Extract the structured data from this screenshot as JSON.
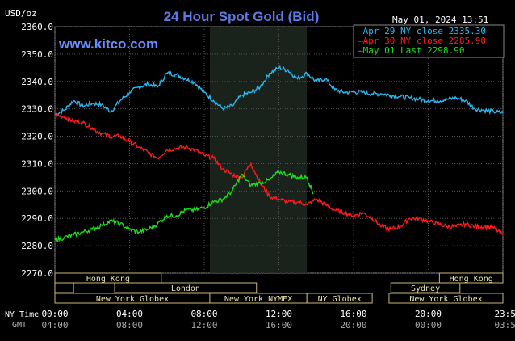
{
  "chart_data": {
    "type": "line",
    "title": "24 Hour Spot Gold (Bid)",
    "watermark": "www.kitco.com",
    "timestamp": "May 01, 2024 13:51",
    "ylabel": "USD/oz",
    "ylim": [
      2270,
      2360
    ],
    "yticks": [
      "2360.0",
      "2350.0",
      "2340.0",
      "2330.0",
      "2320.0",
      "2310.0",
      "2300.0",
      "2290.0",
      "2280.0",
      "2270.0"
    ],
    "grid": true,
    "legend_placement": "top-right",
    "x_ny": [
      "00:00",
      "04:00",
      "08:00",
      "12:00",
      "16:00",
      "20:00",
      "23:59"
    ],
    "x_gmt": [
      "04:00",
      "08:00",
      "12:00",
      "16:00",
      "20:00",
      "00:00",
      "03:59"
    ],
    "ny_time_label": "NY Time",
    "gmt_label": "GMT",
    "highlight_hours": [
      8.3,
      13.5
    ],
    "series": [
      {
        "name": "Apr 29 NY close 2335.30",
        "color": "#29b8f0",
        "points": [
          [
            0,
            2328
          ],
          [
            0.5,
            2329.5
          ],
          [
            1,
            2333
          ],
          [
            1.5,
            2331
          ],
          [
            2,
            2332
          ],
          [
            2.5,
            2331.5
          ],
          [
            3,
            2329
          ],
          [
            3.5,
            2333
          ],
          [
            4,
            2336
          ],
          [
            4.5,
            2338
          ],
          [
            5,
            2339
          ],
          [
            5.5,
            2338
          ],
          [
            6,
            2343
          ],
          [
            6.5,
            2342.5
          ],
          [
            7,
            2341
          ],
          [
            7.5,
            2339.5
          ],
          [
            8,
            2336
          ],
          [
            8.5,
            2333
          ],
          [
            9,
            2330
          ],
          [
            9.5,
            2331
          ],
          [
            10,
            2335
          ],
          [
            10.5,
            2336
          ],
          [
            11,
            2338
          ],
          [
            11.5,
            2343
          ],
          [
            12,
            2345
          ],
          [
            12.5,
            2344
          ],
          [
            13,
            2341
          ],
          [
            13.5,
            2343
          ],
          [
            14,
            2340
          ],
          [
            14.5,
            2341
          ],
          [
            15,
            2337
          ],
          [
            15.5,
            2336
          ],
          [
            16,
            2336.2
          ],
          [
            16.5,
            2336
          ],
          [
            17,
            2335.5
          ],
          [
            17.5,
            2335.5
          ],
          [
            18,
            2335
          ],
          [
            18.5,
            2334.5
          ],
          [
            19,
            2334
          ],
          [
            19.5,
            2333.5
          ],
          [
            20,
            2333
          ],
          [
            20.5,
            2333
          ],
          [
            21,
            2333.5
          ],
          [
            21.5,
            2334
          ],
          [
            22,
            2333
          ],
          [
            22.5,
            2330
          ],
          [
            23,
            2329.5
          ],
          [
            23.5,
            2329
          ],
          [
            24,
            2328.5
          ]
        ]
      },
      {
        "name": "Apr 30 NY close 2285.90",
        "color": "#ff1a1a",
        "points": [
          [
            0,
            2328
          ],
          [
            0.5,
            2327
          ],
          [
            1,
            2325.5
          ],
          [
            1.5,
            2325
          ],
          [
            2,
            2323
          ],
          [
            2.5,
            2321
          ],
          [
            3,
            2320
          ],
          [
            3.5,
            2320
          ],
          [
            4,
            2318
          ],
          [
            4.5,
            2316
          ],
          [
            5,
            2314
          ],
          [
            5.5,
            2312
          ],
          [
            6,
            2315
          ],
          [
            6.5,
            2315.5
          ],
          [
            7,
            2316
          ],
          [
            7.5,
            2315
          ],
          [
            8,
            2313
          ],
          [
            8.5,
            2312
          ],
          [
            9,
            2308
          ],
          [
            9.5,
            2306
          ],
          [
            10,
            2305
          ],
          [
            10.5,
            2310
          ],
          [
            11,
            2303
          ],
          [
            11.5,
            2298
          ],
          [
            12,
            2297
          ],
          [
            12.5,
            2296
          ],
          [
            13,
            2296
          ],
          [
            13.5,
            2295
          ],
          [
            14,
            2297
          ],
          [
            14.5,
            2295
          ],
          [
            15,
            2293
          ],
          [
            15.5,
            2292
          ],
          [
            16,
            2291
          ],
          [
            16.5,
            2292
          ],
          [
            17,
            2290
          ],
          [
            17.5,
            2287
          ],
          [
            18,
            2286
          ],
          [
            18.5,
            2287
          ],
          [
            19,
            2290
          ],
          [
            19.5,
            2290
          ],
          [
            20,
            2289
          ],
          [
            20.5,
            2288
          ],
          [
            21,
            2287
          ],
          [
            21.5,
            2287
          ],
          [
            22,
            2288
          ],
          [
            22.5,
            2287
          ],
          [
            23,
            2287
          ],
          [
            23.5,
            2286.5
          ],
          [
            24,
            2284
          ]
        ]
      },
      {
        "name": "May 01 Last 2298.90",
        "color": "#19e019",
        "points": [
          [
            0,
            2282
          ],
          [
            0.5,
            2283
          ],
          [
            1,
            2284
          ],
          [
            1.5,
            2285
          ],
          [
            2,
            2286
          ],
          [
            2.5,
            2287.5
          ],
          [
            3,
            2289
          ],
          [
            3.5,
            2288
          ],
          [
            4,
            2286
          ],
          [
            4.5,
            2285
          ],
          [
            5,
            2286
          ],
          [
            5.5,
            2288
          ],
          [
            6,
            2291
          ],
          [
            6.5,
            2291
          ],
          [
            7,
            2293
          ],
          [
            7.5,
            2293
          ],
          [
            8,
            2294
          ],
          [
            8.5,
            2296
          ],
          [
            9,
            2297
          ],
          [
            9.5,
            2300
          ],
          [
            10,
            2306
          ],
          [
            10.5,
            2302
          ],
          [
            11,
            2303
          ],
          [
            11.5,
            2304
          ],
          [
            12,
            2307
          ],
          [
            12.5,
            2306
          ],
          [
            13,
            2305
          ],
          [
            13.5,
            2305
          ],
          [
            13.85,
            2299
          ]
        ]
      }
    ],
    "sessions": [
      {
        "name": "Hong Kong",
        "rows": [
          [
            0,
            0,
            5.7
          ],
          [
            0,
            20.6,
            24
          ]
        ]
      },
      {
        "name": "London",
        "rows": [
          [
            1,
            0,
            1.0
          ],
          [
            1,
            3.2,
            10.8
          ]
        ]
      },
      {
        "name": "Sydney",
        "rows": [
          [
            1,
            18,
            21.7
          ]
        ]
      },
      {
        "name": "New York Globex",
        "rows": [
          [
            2,
            0,
            8.3
          ],
          [
            2,
            17.9,
            24
          ]
        ]
      },
      {
        "name": "New York NYMEX",
        "rows": [
          [
            2,
            8.3,
            13.5
          ]
        ]
      },
      {
        "name": "NY Globex",
        "rows": [
          [
            2,
            13.5,
            17.0
          ]
        ]
      }
    ]
  }
}
